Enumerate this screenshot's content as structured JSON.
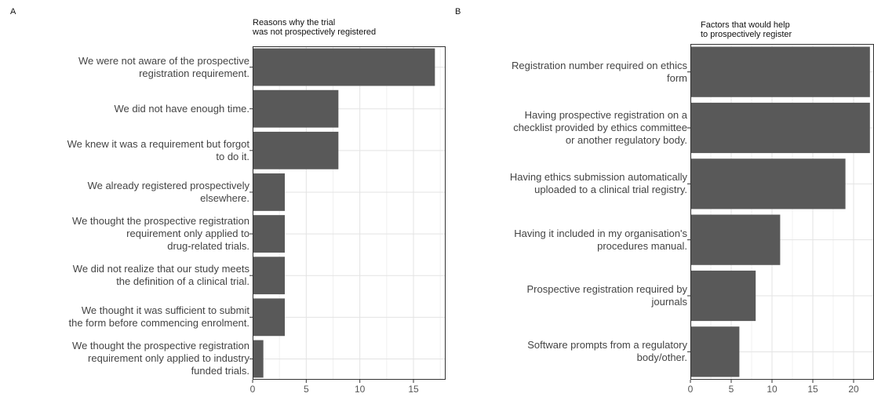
{
  "chart_data": [
    {
      "type": "bar",
      "orientation": "horizontal",
      "panel_label": "A",
      "title": "Reasons why the trial\nwas not prospectively registered",
      "categories": [
        "We were not aware of the prospective\nregistration requirement.",
        "We did not have enough time.",
        "We knew it was a requirement but forgot\nto do it.",
        "We already registered prospectively\nelsewhere.",
        "We thought the prospective registration\nrequirement only applied to\ndrug-related trials.",
        "We did not realize that our study meets\nthe definition of a clinical trial.",
        "We thought it was sufficient to submit\nthe form before commencing enrolment.",
        "We thought the prospective registration\nrequirement only applied to industry\nfunded trials."
      ],
      "values": [
        17,
        8,
        8,
        3,
        3,
        3,
        3,
        1
      ],
      "xlim": [
        0,
        18
      ],
      "xticks": [
        0,
        5,
        10,
        15
      ],
      "grid": true,
      "bar_color": "#595959"
    },
    {
      "type": "bar",
      "orientation": "horizontal",
      "panel_label": "B",
      "title": "Factors that would help\nto prospectively register",
      "categories": [
        "Registration number required on ethics\nform",
        "Having prospective registration on a\nchecklist provided by ethics committee\nor another regulatory body.",
        "Having ethics submission automatically\nuploaded to a clinical trial registry.",
        "Having it included in my organisation's\nprocedures manual.",
        "Prospective registration required by\njournals",
        "Software prompts from a regulatory\nbody/other."
      ],
      "values": [
        22,
        22,
        19,
        11,
        8,
        6
      ],
      "xlim": [
        0,
        22.5
      ],
      "xticks": [
        0,
        5,
        10,
        15,
        20
      ],
      "grid": true,
      "bar_color": "#595959"
    }
  ]
}
